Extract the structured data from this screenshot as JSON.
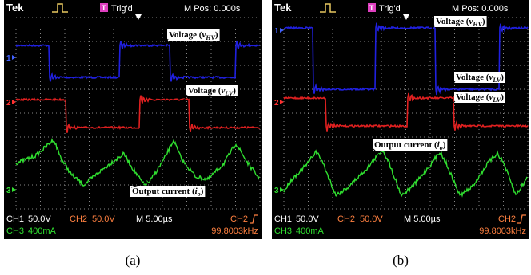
{
  "panels": [
    {
      "caption": "(a)",
      "header": {
        "brand": "Tek",
        "trigger_icon": "T",
        "trigger": "Trig'd",
        "position": "M Pos: 0.000s"
      },
      "channel_markers": [
        "1",
        "2",
        "3"
      ],
      "annotations": [
        {
          "parts": [
            "Voltage (",
            "v",
            "HV",
            ")"
          ]
        },
        {
          "parts": [
            "Voltage (",
            "v",
            "LV",
            ")"
          ]
        },
        {
          "parts": [
            "Output current (",
            "i",
            "o",
            ")"
          ]
        }
      ],
      "footer": {
        "ch1": "CH1",
        "ch1_scale": "50.0V",
        "ch2": "CH2",
        "ch2_scale": "50.0V",
        "timebase": "M 5.00µs",
        "trigger_source": "CH2",
        "ch3": "CH3",
        "ch3_scale": "400mA",
        "frequency": "99.8003kHz"
      }
    },
    {
      "caption": "(b)",
      "header": {
        "brand": "Tek",
        "trigger_icon": "T",
        "trigger": "Trig'd",
        "position": "M Pos: 0.000s"
      },
      "channel_markers": [
        "1",
        "2",
        "3"
      ],
      "annotations": [
        {
          "parts": [
            "Voltage (",
            "v",
            "HV",
            ")"
          ]
        },
        {
          "parts": [
            "Voltage (",
            "v",
            "LV",
            ")"
          ]
        },
        {
          "parts": [
            "Voltage (",
            "v",
            "LV",
            ")"
          ]
        },
        {
          "parts": [
            "Output current (",
            "i",
            "o",
            ")"
          ]
        }
      ],
      "footer": {
        "ch1": "CH1",
        "ch1_scale": "50.0V",
        "ch2": "CH2",
        "ch2_scale": "50.0V",
        "timebase": "M 5.00µs",
        "trigger_source": "CH2",
        "ch3": "CH3",
        "ch3_scale": "400mA",
        "frequency": "99.8003kHz"
      }
    }
  ]
}
